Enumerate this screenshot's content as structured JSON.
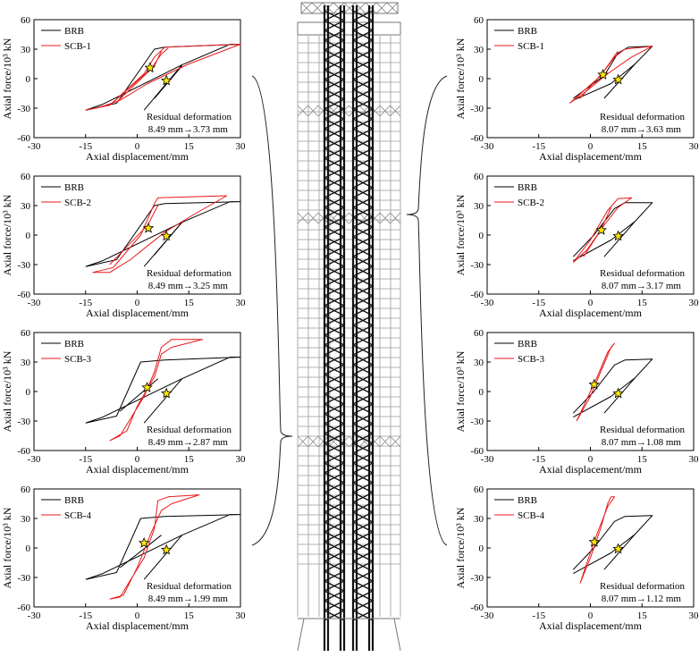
{
  "figure": {
    "description_note": "",
    "colors": {
      "brb": "#000000",
      "scb": "#e8191b",
      "star_fill": "#ffe600",
      "star_stroke": "#000000",
      "tower": "#111111"
    }
  },
  "axes_common": {
    "xlabel": "Axial displacement/mm",
    "ylabel": "Axial force/10³ kN",
    "xlim": [
      -30,
      30
    ],
    "ylim": [
      -60,
      60
    ],
    "xticks": [
      "-30",
      "-15",
      "0",
      "15",
      "30"
    ],
    "yticks": [
      "60",
      "30",
      "0",
      "-30",
      "-60"
    ],
    "residual_title": "Residual deformation",
    "legend_brb": "BRB"
  },
  "chart_data": [
    {
      "type": "line",
      "panel": "left-1",
      "legend": [
        "BRB",
        "SCB-1"
      ],
      "residual_text": "8.49 mm→3.73 mm",
      "star_brb": [
        8.49,
        -2
      ],
      "star_scb": [
        3.73,
        11
      ],
      "series": [
        {
          "name": "BRB",
          "points": [
            [
              -15,
              -32
            ],
            [
              -6,
              -25
            ],
            [
              5,
              30
            ],
            [
              8,
              32
            ],
            [
              30,
              35
            ],
            [
              27,
              35
            ],
            [
              13,
              14
            ],
            [
              -10,
              -26
            ],
            [
              -15,
              -32
            ]
          ]
        },
        {
          "name": "BRB-unload",
          "points": [
            [
              2,
              -32
            ],
            [
              13,
              14
            ]
          ]
        },
        {
          "name": "BRB-elastic",
          "points": [
            [
              5,
              -20
            ],
            [
              13,
              13
            ]
          ]
        },
        {
          "name": "SCB-1",
          "points": [
            [
              -15,
              -32
            ],
            [
              -8,
              -27
            ],
            [
              2,
              5
            ],
            [
              5,
              22
            ],
            [
              8,
              32
            ],
            [
              30,
              35
            ],
            [
              15,
              15
            ],
            [
              3,
              -5
            ],
            [
              -5,
              -22
            ],
            [
              -10,
              -28
            ],
            [
              -15,
              -32
            ]
          ]
        },
        {
          "name": "SCB-1b",
          "points": [
            [
              -8,
              -27
            ],
            [
              4,
              10
            ],
            [
              7,
              25
            ],
            [
              9,
              31
            ]
          ]
        },
        {
          "name": "SCB-1c",
          "points": [
            [
              -6,
              -24
            ],
            [
              5,
              13
            ],
            [
              7,
              28
            ]
          ]
        }
      ]
    },
    {
      "type": "line",
      "panel": "left-2",
      "legend": [
        "BRB",
        "SCB-2"
      ],
      "residual_text": "8.49 mm→3.25 mm",
      "star_brb": [
        8.49,
        -1
      ],
      "star_scb": [
        3.25,
        7
      ],
      "series": [
        {
          "name": "BRB",
          "points": [
            [
              -15,
              -32
            ],
            [
              -6,
              -25
            ],
            [
              5,
              30
            ],
            [
              8,
              32
            ],
            [
              30,
              34
            ],
            [
              27,
              34
            ],
            [
              13,
              13
            ],
            [
              -10,
              -26
            ],
            [
              -15,
              -32
            ]
          ]
        },
        {
          "name": "BRB-unload",
          "points": [
            [
              2,
              -32
            ],
            [
              13,
              13
            ]
          ]
        },
        {
          "name": "BRB-elastic",
          "points": [
            [
              5,
              -20
            ],
            [
              13,
              13
            ]
          ]
        },
        {
          "name": "SCB-2",
          "points": [
            [
              -13,
              -38
            ],
            [
              -7,
              -33
            ],
            [
              1,
              0
            ],
            [
              5,
              32
            ],
            [
              6,
              38
            ],
            [
              26,
              40
            ],
            [
              16,
              20
            ],
            [
              8,
              3
            ],
            [
              -2,
              -25
            ],
            [
              -8,
              -38
            ],
            [
              -13,
              -38
            ]
          ]
        },
        {
          "name": "SCB-2b",
          "points": [
            [
              -8,
              -30
            ],
            [
              3,
              10
            ],
            [
              6,
              30
            ]
          ]
        }
      ]
    },
    {
      "type": "line",
      "panel": "left-3",
      "legend": [
        "BRB",
        "SCB-3"
      ],
      "residual_text": "8.49 mm→2.87 mm",
      "star_brb": [
        8.49,
        -2
      ],
      "star_scb": [
        2.87,
        4
      ],
      "series": [
        {
          "name": "BRB",
          "points": [
            [
              -15,
              -32
            ],
            [
              -6,
              -25
            ],
            [
              1,
              30
            ],
            [
              8,
              32
            ],
            [
              30,
              35
            ],
            [
              27,
              35
            ],
            [
              13,
              13
            ],
            [
              -10,
              -26
            ],
            [
              -15,
              -32
            ]
          ]
        },
        {
          "name": "BRB-unload",
          "points": [
            [
              2,
              -32
            ],
            [
              13,
              13
            ]
          ]
        },
        {
          "name": "BRB-elastic",
          "points": [
            [
              -5,
              -20
            ],
            [
              6,
              13
            ]
          ]
        },
        {
          "name": "SCB-3",
          "points": [
            [
              -8,
              -50
            ],
            [
              -5,
              -45
            ],
            [
              2,
              -5
            ],
            [
              5,
              20
            ],
            [
              7,
              45
            ],
            [
              10,
              53
            ],
            [
              19,
              53
            ],
            [
              10,
              45
            ],
            [
              7,
              38
            ],
            [
              5,
              15
            ],
            [
              0,
              -15
            ],
            [
              -3,
              -40
            ],
            [
              -8,
              -50
            ]
          ]
        }
      ]
    },
    {
      "type": "line",
      "panel": "left-4",
      "legend": [
        "BRB",
        "SCB-4"
      ],
      "residual_text": "8.49 mm→1.99 mm",
      "star_brb": [
        8.49,
        -2
      ],
      "star_scb": [
        1.99,
        5
      ],
      "series": [
        {
          "name": "BRB",
          "points": [
            [
              -15,
              -32
            ],
            [
              -6,
              -25
            ],
            [
              1,
              30
            ],
            [
              8,
              32
            ],
            [
              30,
              34
            ],
            [
              27,
              34
            ],
            [
              13,
              13
            ],
            [
              -10,
              -26
            ],
            [
              -15,
              -32
            ]
          ]
        },
        {
          "name": "BRB-unload",
          "points": [
            [
              2,
              -32
            ],
            [
              13,
              13
            ]
          ]
        },
        {
          "name": "BRB-elastic",
          "points": [
            [
              -5,
              -20
            ],
            [
              7,
              13
            ]
          ]
        },
        {
          "name": "SCB-4",
          "points": [
            [
              -8,
              -52
            ],
            [
              -5,
              -50
            ],
            [
              2,
              -10
            ],
            [
              5,
              20
            ],
            [
              6,
              48
            ],
            [
              9,
              52
            ],
            [
              18,
              54
            ],
            [
              10,
              45
            ],
            [
              7,
              38
            ],
            [
              4,
              15
            ],
            [
              0,
              -20
            ],
            [
              -4,
              -48
            ],
            [
              -8,
              -52
            ]
          ]
        }
      ]
    },
    {
      "type": "line",
      "panel": "right-1",
      "legend": [
        "BRB",
        "SCB-1"
      ],
      "residual_text": "8.07 mm→3.63 mm",
      "star_brb": [
        8.07,
        -1
      ],
      "star_scb": [
        3.63,
        4
      ],
      "series": [
        {
          "name": "BRB",
          "points": [
            [
              -5,
              -20
            ],
            [
              4,
              3
            ],
            [
              8,
              26
            ],
            [
              11,
              32
            ],
            [
              18,
              33
            ],
            [
              13,
              15
            ],
            [
              6,
              -5
            ],
            [
              -5,
              -22
            ]
          ]
        },
        {
          "name": "BRB-unload",
          "points": [
            [
              4,
              -20
            ],
            [
              13,
              15
            ]
          ]
        },
        {
          "name": "SCB-1",
          "points": [
            [
              -6,
              -25
            ],
            [
              3,
              3
            ],
            [
              7,
              22
            ],
            [
              10,
              30
            ],
            [
              18,
              33
            ],
            [
              12,
              22
            ],
            [
              5,
              5
            ],
            [
              -2,
              -15
            ],
            [
              -6,
              -25
            ]
          ]
        },
        {
          "name": "SCB-1b",
          "points": [
            [
              -3,
              -20
            ],
            [
              4,
              8
            ],
            [
              8,
              28
            ]
          ]
        }
      ]
    },
    {
      "type": "line",
      "panel": "right-2",
      "legend": [
        "BRB",
        "SCB-2"
      ],
      "residual_text": "8.07 mm→3.17 mm",
      "star_brb": [
        8.07,
        -1
      ],
      "star_scb": [
        3.17,
        5
      ],
      "series": [
        {
          "name": "BRB",
          "points": [
            [
              -5,
              -22
            ],
            [
              1,
              0
            ],
            [
              7,
              27
            ],
            [
              10,
              33
            ],
            [
              18,
              33
            ],
            [
              13,
              14
            ],
            [
              6,
              -5
            ],
            [
              -5,
              -26
            ]
          ]
        },
        {
          "name": "BRB-unload",
          "points": [
            [
              4,
              -22
            ],
            [
              13,
              14
            ]
          ]
        },
        {
          "name": "SCB-2",
          "points": [
            [
              -5,
              -28
            ],
            [
              0,
              -5
            ],
            [
              5,
              25
            ],
            [
              8,
              37
            ],
            [
              12,
              38
            ],
            [
              8,
              28
            ],
            [
              4,
              10
            ],
            [
              -1,
              -15
            ],
            [
              -5,
              -28
            ]
          ]
        },
        {
          "name": "SCB-2b",
          "points": [
            [
              -2,
              -22
            ],
            [
              3,
              5
            ],
            [
              6,
              28
            ]
          ]
        }
      ]
    },
    {
      "type": "line",
      "panel": "right-3",
      "legend": [
        "BRB",
        "SCB-3"
      ],
      "residual_text": "8.07 mm→1.08 mm",
      "star_brb": [
        8.07,
        -2
      ],
      "star_scb": [
        1.08,
        7
      ],
      "series": [
        {
          "name": "BRB",
          "points": [
            [
              -5,
              -22
            ],
            [
              1,
              0
            ],
            [
              7,
              27
            ],
            [
              10,
              32
            ],
            [
              18,
              33
            ],
            [
              13,
              14
            ],
            [
              6,
              -5
            ],
            [
              -5,
              -26
            ]
          ]
        },
        {
          "name": "BRB-unload",
          "points": [
            [
              4,
              -22
            ],
            [
              13,
              14
            ]
          ]
        },
        {
          "name": "SCB-3",
          "points": [
            [
              -4,
              -30
            ],
            [
              0,
              -5
            ],
            [
              3,
              20
            ],
            [
              6,
              45
            ],
            [
              7,
              49
            ],
            [
              5,
              40
            ],
            [
              2,
              15
            ],
            [
              -2,
              -15
            ],
            [
              -4,
              -30
            ]
          ]
        }
      ]
    },
    {
      "type": "line",
      "panel": "right-4",
      "legend": [
        "BRB",
        "SCB-4"
      ],
      "residual_text": "8.07 mm→1.12 mm",
      "star_brb": [
        8.07,
        -1
      ],
      "star_scb": [
        1.12,
        6
      ],
      "series": [
        {
          "name": "BRB",
          "points": [
            [
              -5,
              -22
            ],
            [
              1,
              0
            ],
            [
              7,
              27
            ],
            [
              10,
              32
            ],
            [
              18,
              33
            ],
            [
              13,
              14
            ],
            [
              6,
              -5
            ],
            [
              -5,
              -26
            ]
          ]
        },
        {
          "name": "BRB-unload",
          "points": [
            [
              4,
              -22
            ],
            [
              13,
              14
            ]
          ]
        },
        {
          "name": "SCB-4",
          "points": [
            [
              -3,
              -36
            ],
            [
              0,
              -10
            ],
            [
              3,
              20
            ],
            [
              5,
              45
            ],
            [
              6,
              52
            ],
            [
              7,
              52
            ],
            [
              5,
              42
            ],
            [
              2,
              15
            ],
            [
              -1,
              -15
            ],
            [
              -3,
              -36
            ]
          ]
        }
      ]
    }
  ]
}
